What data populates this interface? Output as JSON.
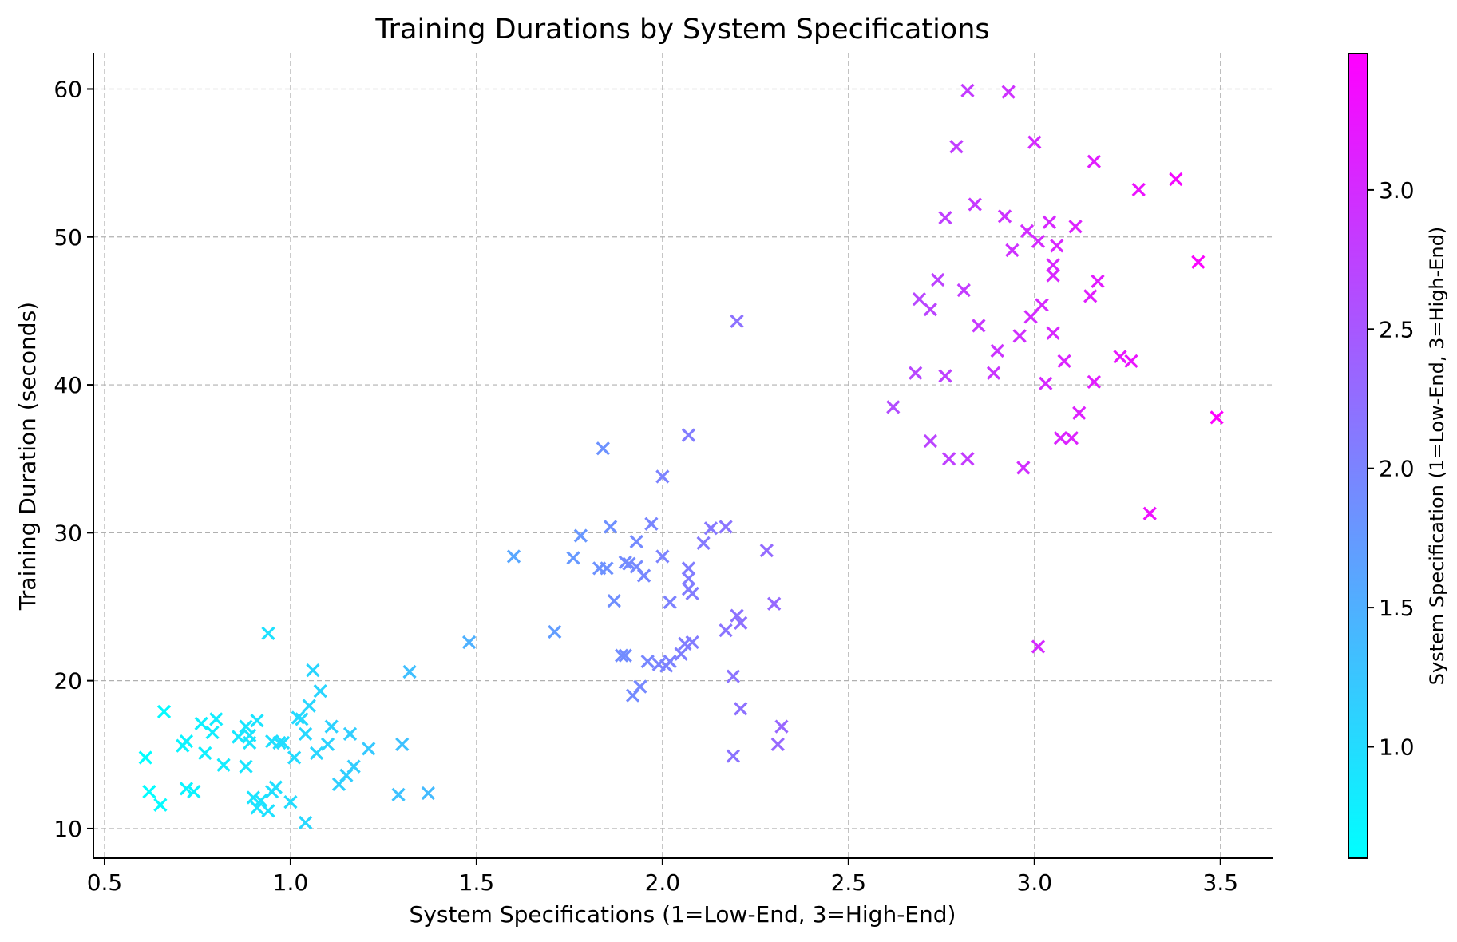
{
  "chart_data": {
    "type": "scatter",
    "title": "Training Durations by System Specifications",
    "xlabel": "System Specifications (1=Low-End, 3=High-End)",
    "ylabel": "Training Duration (seconds)",
    "xlim": [
      0.47,
      3.64
    ],
    "ylim": [
      8.0,
      62.4
    ],
    "xticks": [
      "0.5",
      "1.0",
      "1.5",
      "2.0",
      "2.5",
      "3.0",
      "3.5"
    ],
    "xtick_values": [
      0.5,
      1.0,
      1.5,
      2.0,
      2.5,
      3.0,
      3.5
    ],
    "yticks": [
      "10",
      "20",
      "30",
      "40",
      "50",
      "60"
    ],
    "ytick_values": [
      10,
      20,
      30,
      40,
      50,
      60
    ],
    "grid": true,
    "marker": "x",
    "colormap": "cool",
    "colormap_colors": [
      "#00ffff",
      "#ff00ff"
    ],
    "colorbar": {
      "label": "System Specification (1=Low-End, 3=High-End)",
      "range": [
        0.6,
        3.49
      ],
      "ticks": [
        "1.0",
        "1.5",
        "2.0",
        "2.5",
        "3.0"
      ],
      "tick_values": [
        1.0,
        1.5,
        2.0,
        2.5,
        3.0
      ]
    },
    "points": [
      {
        "x": 0.61,
        "y": 14.8
      },
      {
        "x": 0.62,
        "y": 12.5
      },
      {
        "x": 0.65,
        "y": 11.6
      },
      {
        "x": 0.66,
        "y": 17.9
      },
      {
        "x": 0.71,
        "y": 15.6
      },
      {
        "x": 0.72,
        "y": 15.9
      },
      {
        "x": 0.72,
        "y": 12.7
      },
      {
        "x": 0.74,
        "y": 12.5
      },
      {
        "x": 0.76,
        "y": 17.1
      },
      {
        "x": 0.77,
        "y": 15.1
      },
      {
        "x": 0.79,
        "y": 16.5
      },
      {
        "x": 0.8,
        "y": 17.4
      },
      {
        "x": 0.82,
        "y": 14.3
      },
      {
        "x": 0.86,
        "y": 16.2
      },
      {
        "x": 0.88,
        "y": 16.9
      },
      {
        "x": 0.88,
        "y": 14.2
      },
      {
        "x": 0.89,
        "y": 16.3
      },
      {
        "x": 0.89,
        "y": 15.8
      },
      {
        "x": 0.9,
        "y": 12.1
      },
      {
        "x": 0.91,
        "y": 17.3
      },
      {
        "x": 0.91,
        "y": 11.4
      },
      {
        "x": 0.92,
        "y": 11.9
      },
      {
        "x": 0.94,
        "y": 11.2
      },
      {
        "x": 0.94,
        "y": 23.2
      },
      {
        "x": 0.95,
        "y": 15.9
      },
      {
        "x": 0.95,
        "y": 12.5
      },
      {
        "x": 0.96,
        "y": 12.8
      },
      {
        "x": 0.97,
        "y": 15.8
      },
      {
        "x": 0.98,
        "y": 15.8
      },
      {
        "x": 1.0,
        "y": 11.8
      },
      {
        "x": 1.01,
        "y": 14.8
      },
      {
        "x": 1.02,
        "y": 17.5
      },
      {
        "x": 1.03,
        "y": 17.4
      },
      {
        "x": 1.04,
        "y": 16.4
      },
      {
        "x": 1.04,
        "y": 10.4
      },
      {
        "x": 1.05,
        "y": 18.3
      },
      {
        "x": 1.06,
        "y": 20.7
      },
      {
        "x": 1.07,
        "y": 15.1
      },
      {
        "x": 1.08,
        "y": 19.3
      },
      {
        "x": 1.1,
        "y": 15.7
      },
      {
        "x": 1.11,
        "y": 16.9
      },
      {
        "x": 1.13,
        "y": 13.0
      },
      {
        "x": 1.15,
        "y": 13.6
      },
      {
        "x": 1.16,
        "y": 16.4
      },
      {
        "x": 1.17,
        "y": 14.2
      },
      {
        "x": 1.21,
        "y": 15.4
      },
      {
        "x": 1.29,
        "y": 12.3
      },
      {
        "x": 1.3,
        "y": 15.7
      },
      {
        "x": 1.32,
        "y": 20.6
      },
      {
        "x": 1.37,
        "y": 12.4
      },
      {
        "x": 1.48,
        "y": 22.6
      },
      {
        "x": 1.6,
        "y": 28.4
      },
      {
        "x": 1.71,
        "y": 23.3
      },
      {
        "x": 1.76,
        "y": 28.3
      },
      {
        "x": 1.78,
        "y": 29.8
      },
      {
        "x": 1.83,
        "y": 27.6
      },
      {
        "x": 1.84,
        "y": 35.7
      },
      {
        "x": 1.85,
        "y": 27.6
      },
      {
        "x": 1.86,
        "y": 30.4
      },
      {
        "x": 1.87,
        "y": 25.4
      },
      {
        "x": 1.89,
        "y": 21.7
      },
      {
        "x": 1.9,
        "y": 21.7
      },
      {
        "x": 1.9,
        "y": 28.0
      },
      {
        "x": 1.91,
        "y": 27.9
      },
      {
        "x": 1.92,
        "y": 19.0
      },
      {
        "x": 1.93,
        "y": 27.7
      },
      {
        "x": 1.93,
        "y": 29.4
      },
      {
        "x": 1.94,
        "y": 19.6
      },
      {
        "x": 1.95,
        "y": 27.1
      },
      {
        "x": 1.96,
        "y": 21.3
      },
      {
        "x": 1.97,
        "y": 30.6
      },
      {
        "x": 1.99,
        "y": 21.1
      },
      {
        "x": 2.0,
        "y": 28.4
      },
      {
        "x": 2.0,
        "y": 33.8
      },
      {
        "x": 2.01,
        "y": 21.0
      },
      {
        "x": 2.02,
        "y": 25.3
      },
      {
        "x": 2.02,
        "y": 21.3
      },
      {
        "x": 2.05,
        "y": 21.8
      },
      {
        "x": 2.06,
        "y": 22.5
      },
      {
        "x": 2.07,
        "y": 27.6
      },
      {
        "x": 2.07,
        "y": 26.9
      },
      {
        "x": 2.07,
        "y": 26.2
      },
      {
        "x": 2.07,
        "y": 36.6
      },
      {
        "x": 2.08,
        "y": 25.9
      },
      {
        "x": 2.08,
        "y": 22.6
      },
      {
        "x": 2.11,
        "y": 29.3
      },
      {
        "x": 2.13,
        "y": 30.3
      },
      {
        "x": 2.17,
        "y": 30.4
      },
      {
        "x": 2.17,
        "y": 23.4
      },
      {
        "x": 2.19,
        "y": 20.3
      },
      {
        "x": 2.19,
        "y": 14.9
      },
      {
        "x": 2.2,
        "y": 24.4
      },
      {
        "x": 2.2,
        "y": 44.3
      },
      {
        "x": 2.21,
        "y": 23.9
      },
      {
        "x": 2.21,
        "y": 18.1
      },
      {
        "x": 2.28,
        "y": 28.8
      },
      {
        "x": 2.3,
        "y": 25.2
      },
      {
        "x": 2.31,
        "y": 15.7
      },
      {
        "x": 2.32,
        "y": 16.9
      },
      {
        "x": 2.62,
        "y": 38.5
      },
      {
        "x": 2.68,
        "y": 40.8
      },
      {
        "x": 2.69,
        "y": 45.8
      },
      {
        "x": 2.72,
        "y": 36.2
      },
      {
        "x": 2.72,
        "y": 45.1
      },
      {
        "x": 2.74,
        "y": 47.1
      },
      {
        "x": 2.76,
        "y": 51.3
      },
      {
        "x": 2.76,
        "y": 40.6
      },
      {
        "x": 2.77,
        "y": 35.0
      },
      {
        "x": 2.79,
        "y": 56.1
      },
      {
        "x": 2.81,
        "y": 46.4
      },
      {
        "x": 2.82,
        "y": 59.9
      },
      {
        "x": 2.82,
        "y": 35.0
      },
      {
        "x": 2.84,
        "y": 52.2
      },
      {
        "x": 2.85,
        "y": 44.0
      },
      {
        "x": 2.89,
        "y": 40.8
      },
      {
        "x": 2.9,
        "y": 42.3
      },
      {
        "x": 2.92,
        "y": 51.4
      },
      {
        "x": 2.93,
        "y": 59.8
      },
      {
        "x": 2.94,
        "y": 49.1
      },
      {
        "x": 2.96,
        "y": 43.3
      },
      {
        "x": 2.97,
        "y": 34.4
      },
      {
        "x": 2.98,
        "y": 50.4
      },
      {
        "x": 2.99,
        "y": 44.6
      },
      {
        "x": 3.0,
        "y": 56.4
      },
      {
        "x": 3.01,
        "y": 49.7
      },
      {
        "x": 3.01,
        "y": 22.3
      },
      {
        "x": 3.02,
        "y": 45.4
      },
      {
        "x": 3.03,
        "y": 40.1
      },
      {
        "x": 3.04,
        "y": 51.0
      },
      {
        "x": 3.05,
        "y": 43.5
      },
      {
        "x": 3.05,
        "y": 48.1
      },
      {
        "x": 3.05,
        "y": 47.4
      },
      {
        "x": 3.06,
        "y": 49.4
      },
      {
        "x": 3.07,
        "y": 36.4
      },
      {
        "x": 3.08,
        "y": 41.6
      },
      {
        "x": 3.1,
        "y": 36.4
      },
      {
        "x": 3.11,
        "y": 50.7
      },
      {
        "x": 3.12,
        "y": 38.1
      },
      {
        "x": 3.15,
        "y": 46.0
      },
      {
        "x": 3.16,
        "y": 40.2
      },
      {
        "x": 3.16,
        "y": 55.1
      },
      {
        "x": 3.17,
        "y": 47.0
      },
      {
        "x": 3.23,
        "y": 41.9
      },
      {
        "x": 3.26,
        "y": 41.6
      },
      {
        "x": 3.28,
        "y": 53.2
      },
      {
        "x": 3.31,
        "y": 31.3
      },
      {
        "x": 3.38,
        "y": 53.9
      },
      {
        "x": 3.44,
        "y": 48.3
      },
      {
        "x": 3.49,
        "y": 37.8
      }
    ]
  }
}
